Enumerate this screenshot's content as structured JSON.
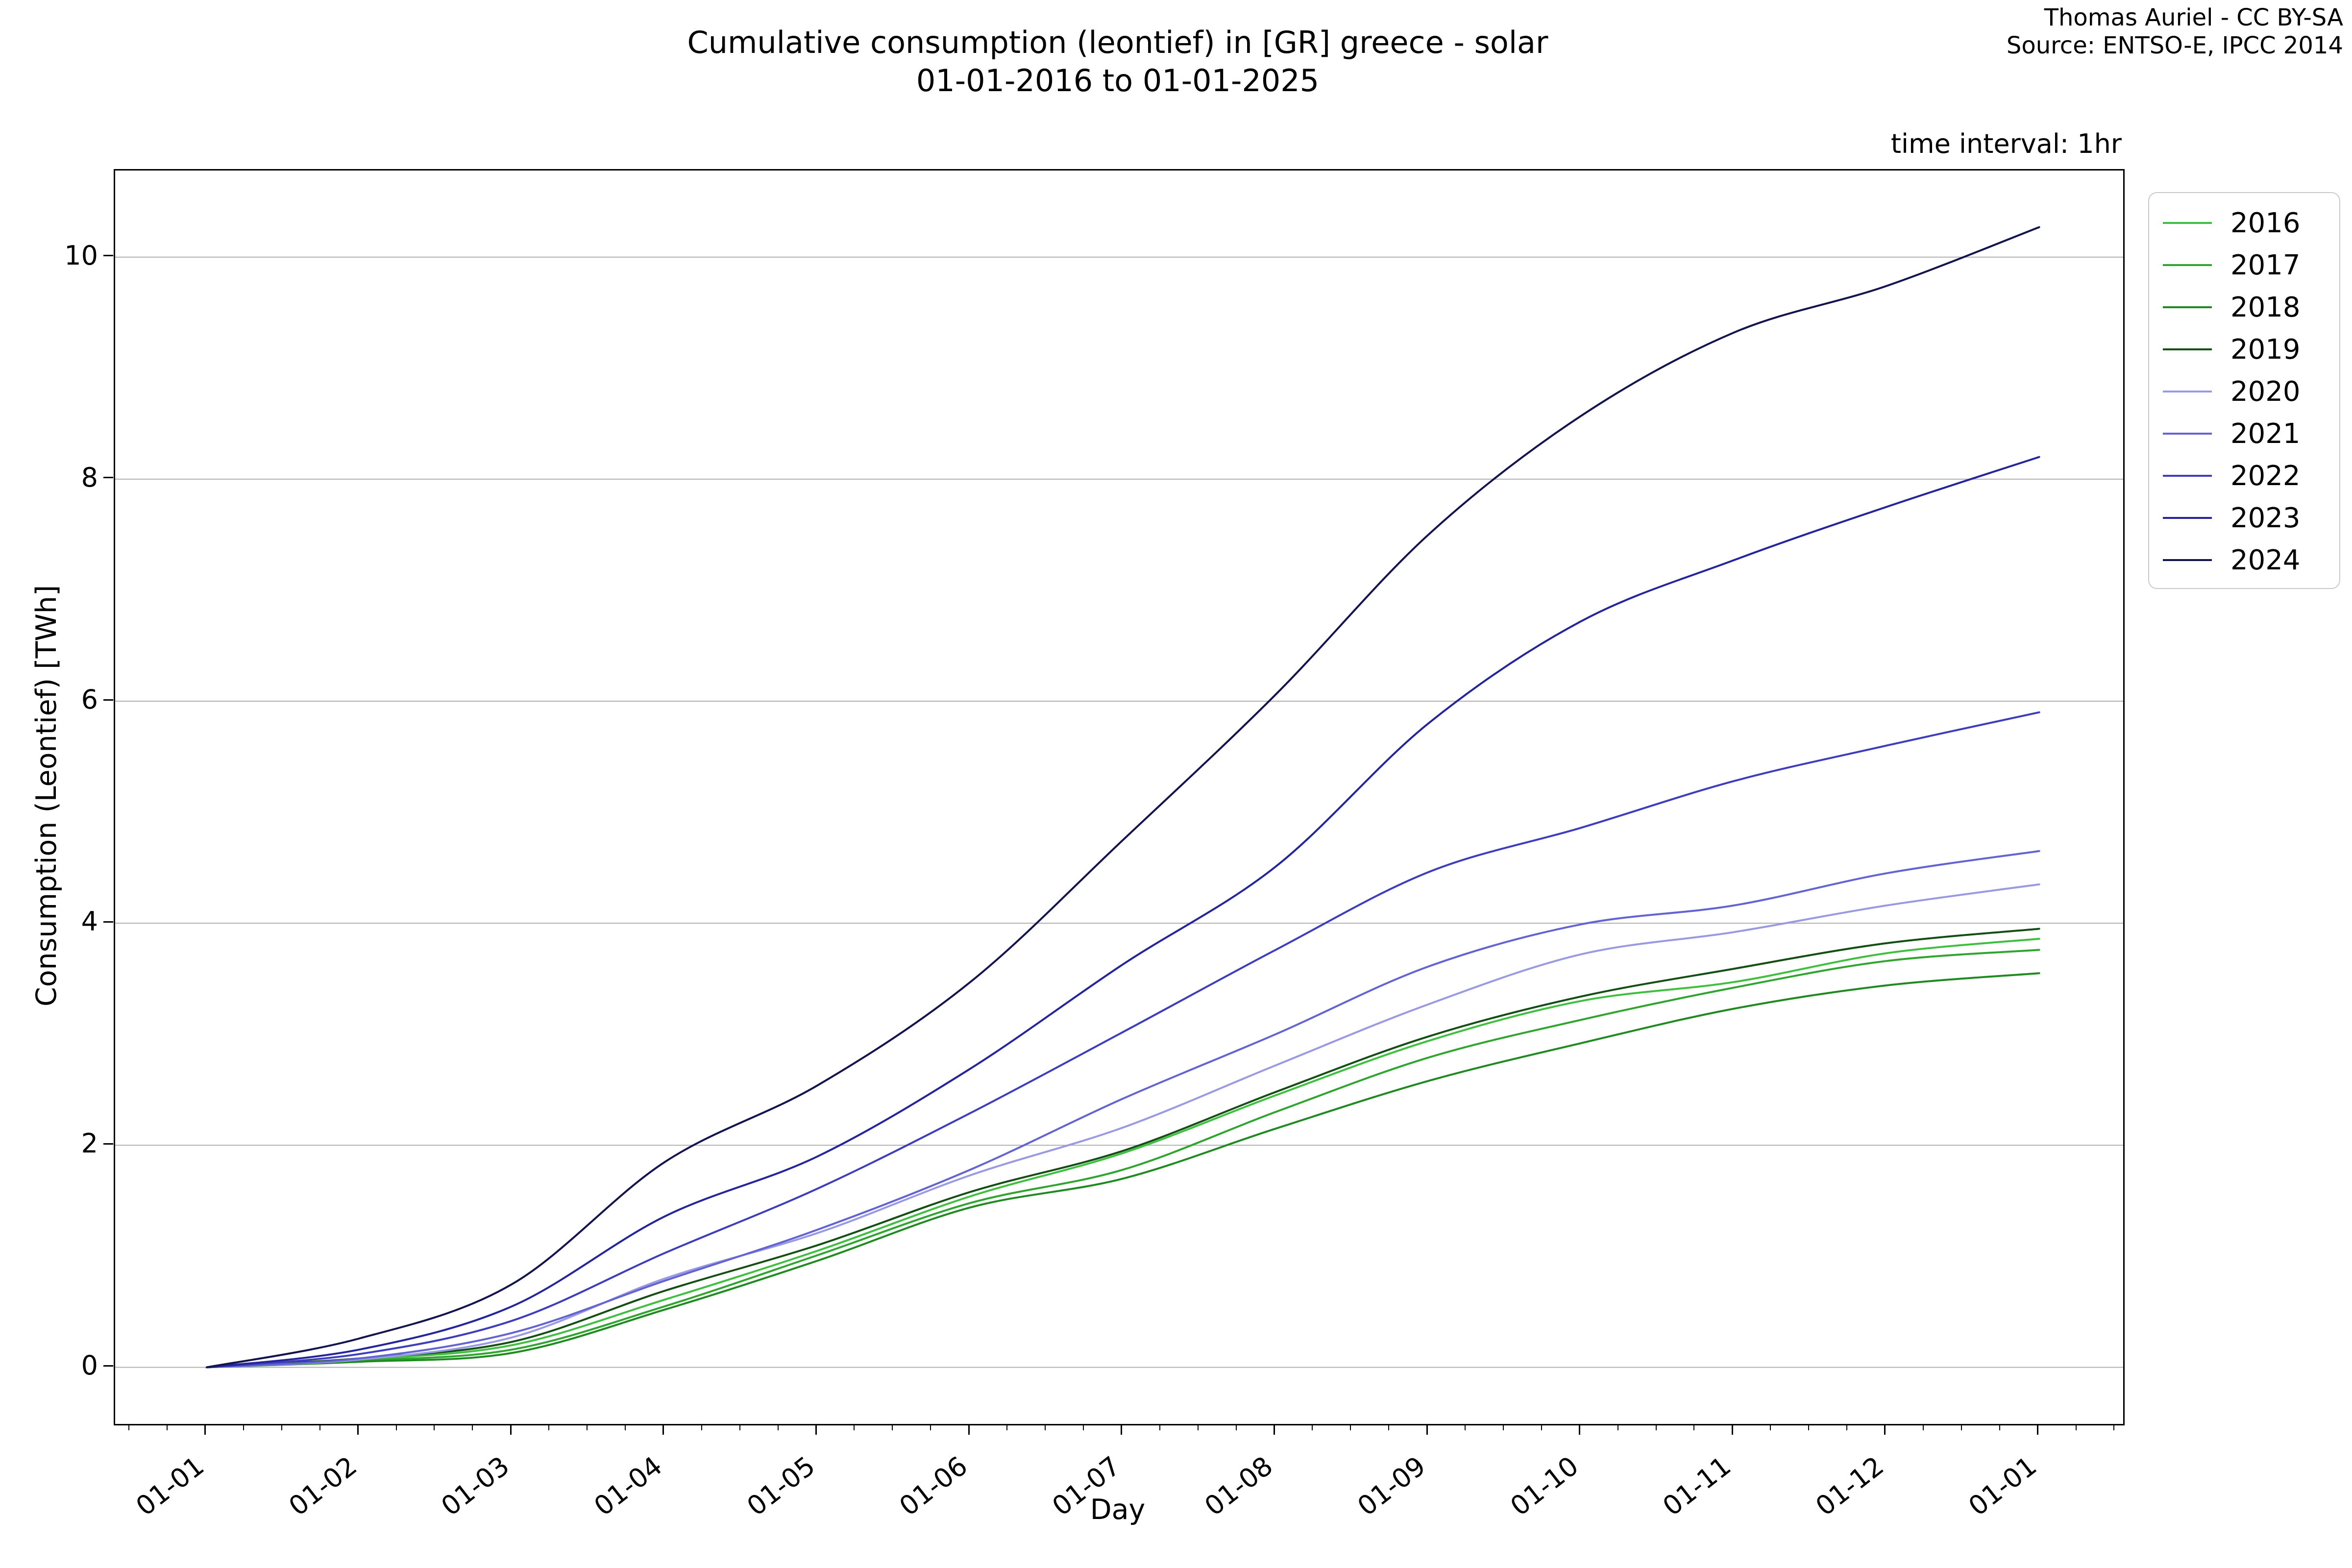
{
  "title": {
    "line1": "Cumulative consumption (leontief) in [GR] greece - solar",
    "line2": "01-01-2016 to 01-01-2025"
  },
  "credit": {
    "line1": "Thomas Auriel - CC BY-SA",
    "line2": "Source: ENTSO-E, IPCC 2014"
  },
  "annotation": "time interval: 1hr",
  "axes": {
    "x_label": "Day",
    "y_label": "Consumption (Leontief) [TWh]",
    "y_ticks": [
      0,
      2,
      4,
      6,
      8,
      10
    ],
    "x_ticks": [
      "01-01",
      "01-02",
      "01-03",
      "01-04",
      "01-05",
      "01-06",
      "01-07",
      "01-08",
      "01-09",
      "01-10",
      "01-11",
      "01-12",
      "01-01"
    ]
  },
  "colors": {
    "gridline": "#b0b0b0",
    "spine": "#000000",
    "legend_border": "#c9c9c9"
  },
  "chart_data": {
    "type": "line",
    "title": "Cumulative consumption (leontief) in [GR] greece - solar 01-01-2016 to 01-01-2025",
    "xlabel": "Day",
    "ylabel": "Consumption (Leontief) [TWh]",
    "x_tick_labels": [
      "01-01",
      "01-02",
      "01-03",
      "01-04",
      "01-05",
      "01-06",
      "01-07",
      "01-08",
      "01-09",
      "01-10",
      "01-11",
      "01-12",
      "01-01"
    ],
    "x_months": [
      0,
      1,
      2,
      3,
      4,
      5,
      6,
      7,
      8,
      9,
      10,
      11,
      12
    ],
    "y_ticks": [
      0,
      2,
      4,
      6,
      8,
      10
    ],
    "ylim": [
      -0.51,
      10.78
    ],
    "xlim_months": [
      -0.6,
      12.55
    ],
    "grid": "horizontal",
    "legend_position": "outside-upper-right",
    "units": "TWh",
    "series": [
      {
        "name": "2016",
        "color": "#3fbf3f",
        "values": [
          0,
          0.07,
          0.2,
          0.61,
          1.05,
          1.54,
          1.93,
          2.45,
          2.94,
          3.3,
          3.47,
          3.73,
          3.86
        ]
      },
      {
        "name": "2017",
        "color": "#2fa52f",
        "values": [
          0,
          0.06,
          0.16,
          0.55,
          1.01,
          1.48,
          1.78,
          2.3,
          2.79,
          3.13,
          3.42,
          3.66,
          3.76
        ]
      },
      {
        "name": "2018",
        "color": "#1f8a1f",
        "values": [
          0,
          0.05,
          0.13,
          0.52,
          0.96,
          1.44,
          1.7,
          2.15,
          2.58,
          2.92,
          3.23,
          3.44,
          3.55
        ]
      },
      {
        "name": "2019",
        "color": "#134e13",
        "values": [
          0,
          0.08,
          0.23,
          0.69,
          1.1,
          1.58,
          1.95,
          2.48,
          2.98,
          3.34,
          3.59,
          3.82,
          3.95
        ]
      },
      {
        "name": "2020",
        "color": "#9a9ae4",
        "values": [
          0,
          0.07,
          0.27,
          0.8,
          1.21,
          1.73,
          2.16,
          2.72,
          3.27,
          3.72,
          3.92,
          4.16,
          4.35
        ]
      },
      {
        "name": "2021",
        "color": "#6363d4",
        "values": [
          0,
          0.08,
          0.31,
          0.78,
          1.24,
          1.78,
          2.42,
          3.0,
          3.61,
          3.99,
          4.16,
          4.45,
          4.65
        ]
      },
      {
        "name": "2022",
        "color": "#3d3dbd",
        "values": [
          0,
          0.12,
          0.42,
          1.03,
          1.61,
          2.29,
          3.02,
          3.76,
          4.46,
          4.86,
          5.28,
          5.6,
          5.9
        ]
      },
      {
        "name": "2023",
        "color": "#24249c",
        "values": [
          0,
          0.16,
          0.55,
          1.36,
          1.9,
          2.69,
          3.63,
          4.51,
          5.8,
          6.72,
          7.27,
          7.75,
          8.2
        ]
      },
      {
        "name": "2024",
        "color": "#13134d",
        "values": [
          0,
          0.26,
          0.75,
          1.85,
          2.54,
          3.47,
          4.75,
          6.06,
          7.5,
          8.57,
          9.32,
          9.74,
          10.27
        ]
      }
    ]
  }
}
